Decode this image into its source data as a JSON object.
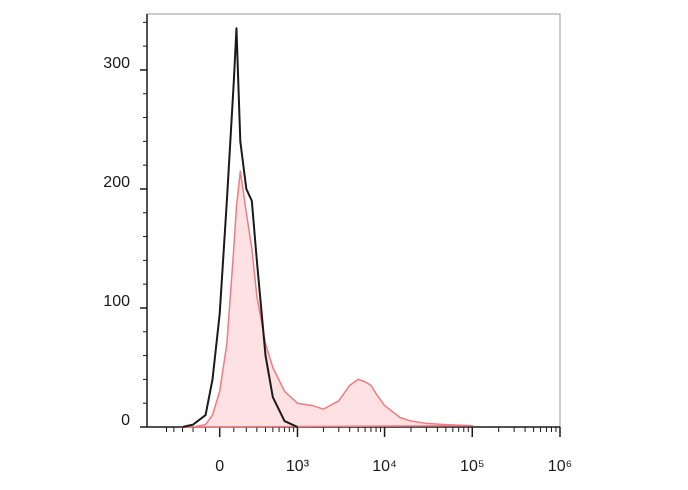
{
  "chart_data": {
    "type": "histogram-overlay",
    "x": [
      -300,
      -200,
      -100,
      -50,
      0,
      50,
      100,
      120,
      150,
      200,
      250,
      300,
      400,
      500,
      700,
      1000,
      1500,
      2000,
      3000,
      4000,
      5000,
      6000,
      7000,
      8000,
      10000,
      15000,
      20000,
      30000,
      50000,
      100000
    ],
    "series": [
      {
        "color": "#f07b82",
        "fill": "#fde1e3",
        "values": [
          0,
          0,
          2,
          10,
          30,
          70,
          150,
          185,
          215,
          180,
          150,
          110,
          70,
          50,
          30,
          20,
          18,
          15,
          22,
          35,
          40,
          38,
          35,
          28,
          18,
          8,
          5,
          3,
          2,
          1
        ]
      },
      {
        "color": "#1a1a1a",
        "values": [
          0,
          2,
          10,
          40,
          95,
          190,
          290,
          335,
          240,
          200,
          190,
          140,
          60,
          25,
          5,
          0,
          null,
          null,
          null,
          null,
          null,
          null,
          null,
          null,
          null,
          null,
          null,
          null,
          null,
          null
        ]
      }
    ],
    "xscale": "asinh",
    "xlim": [
      -870,
      1000000
    ],
    "xticks": [
      0,
      {
        "value": 1000,
        "label": "10³"
      },
      {
        "value": 10000,
        "label": "10⁴"
      },
      {
        "value": 100000,
        "label": "10⁵"
      },
      {
        "value": 1000000,
        "label": "10⁶"
      }
    ],
    "xminorticks": [
      -500,
      -400,
      -300,
      -200,
      -100,
      100,
      200,
      300,
      400,
      500,
      600,
      700,
      800,
      900,
      2000,
      3000,
      4000,
      5000,
      6000,
      7000,
      8000,
      9000,
      20000,
      30000,
      40000,
      50000,
      60000,
      70000,
      80000,
      90000,
      200000,
      300000,
      400000,
      500000,
      600000,
      700000,
      800000,
      900000
    ],
    "ylim": [
      0,
      347
    ],
    "yticks": [
      0,
      100,
      200,
      300
    ],
    "yminorticks": [
      20,
      40,
      60,
      80,
      120,
      140,
      160,
      180,
      220,
      240,
      260,
      280,
      320,
      340
    ]
  }
}
